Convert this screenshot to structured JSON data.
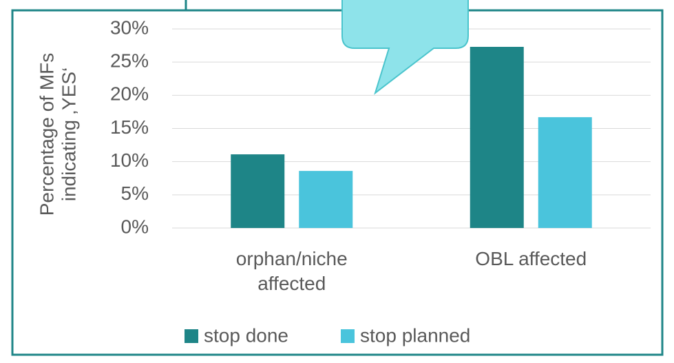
{
  "chart_data": {
    "type": "bar",
    "y_label": [
      "Percentage of MFs",
      "indicating ‚YES‘"
    ],
    "categories": [
      "orphan/niche affected",
      "OBL affected"
    ],
    "series": [
      {
        "name": "stop done",
        "color": "#1e8587",
        "values": [
          11.1,
          27.3
        ]
      },
      {
        "name": "stop planned",
        "color": "#4ac4dc",
        "values": [
          8.6,
          16.7
        ]
      }
    ],
    "ylim": [
      0,
      30
    ],
    "yticks": [
      {
        "value": 0,
        "label": "0%"
      },
      {
        "value": 5,
        "label": "5%"
      },
      {
        "value": 10,
        "label": "10%"
      },
      {
        "value": 15,
        "label": "15%"
      },
      {
        "value": 20,
        "label": "20%"
      },
      {
        "value": 25,
        "label": "25%"
      },
      {
        "value": 30,
        "label": "30%"
      }
    ],
    "grid": true,
    "legend": "bottom"
  }
}
